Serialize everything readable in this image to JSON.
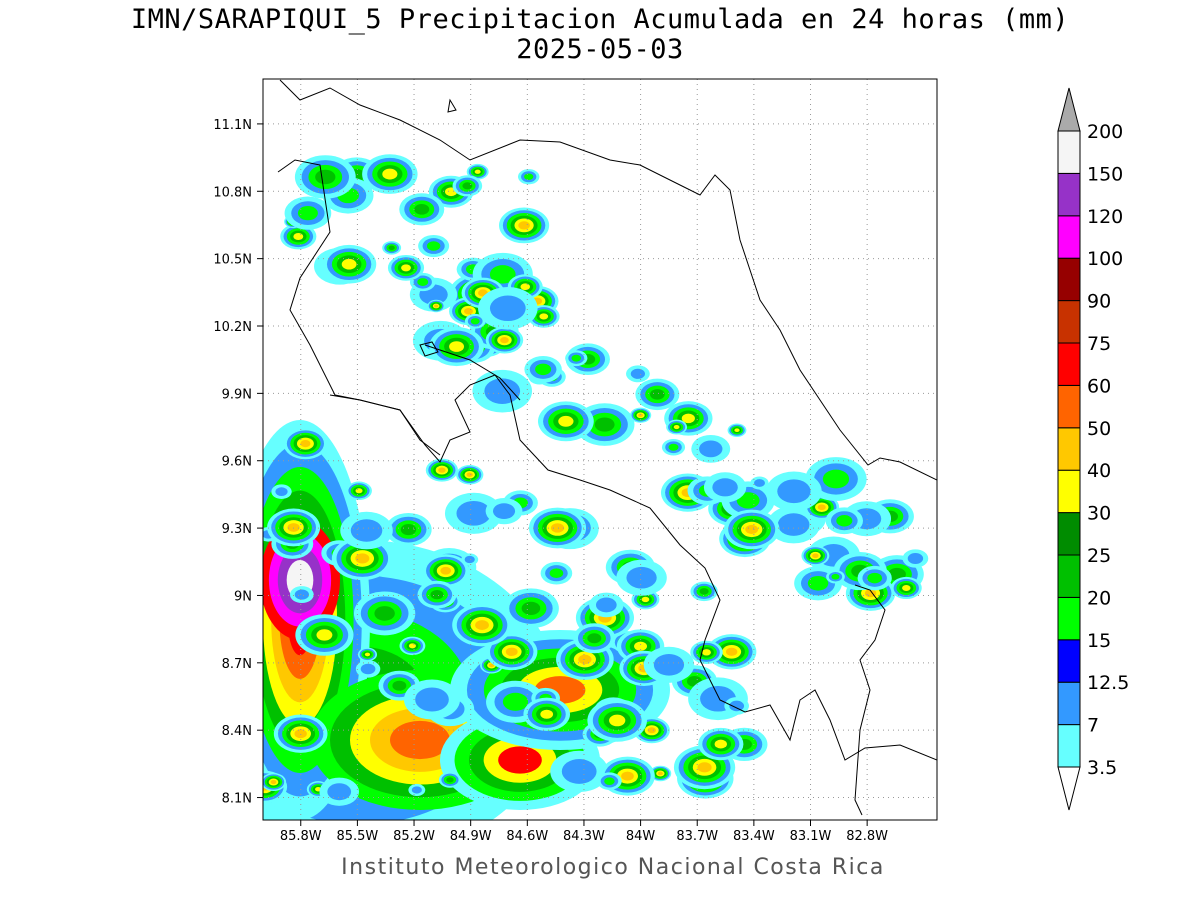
{
  "title": "IMN/SARAPIQUI_5 Precipitacion Acumulada en 24 horas (mm)",
  "date": "2025-05-03",
  "credit": "Instituto Meteorologico Nacional Costa Rica",
  "map": {
    "lon_range": [
      -86.0,
      -82.43
    ],
    "lat_range": [
      8.0,
      11.3
    ],
    "lon_ticks": [
      "85.8W",
      "85.5W",
      "85.2W",
      "84.9W",
      "84.6W",
      "84.3W",
      "84W",
      "83.7W",
      "83.4W",
      "83.1W",
      "82.8W"
    ],
    "lat_ticks": [
      "11.1N",
      "10.8N",
      "10.5N",
      "10.2N",
      "9.9N",
      "9.6N",
      "9.3N",
      "9N",
      "8.7N",
      "8.4N",
      "8.1N"
    ],
    "grid": "dotted"
  },
  "colorbar": {
    "labels": [
      "3.5",
      "7",
      "12.5",
      "15",
      "20",
      "25",
      "30",
      "40",
      "50",
      "60",
      "75",
      "90",
      "100",
      "120",
      "150",
      "200"
    ],
    "colors": [
      "#66ffff",
      "#3399ff",
      "#0000ff",
      "#00ff00",
      "#00c000",
      "#008c00",
      "#ffff00",
      "#ffc800",
      "#ff6400",
      "#ff0000",
      "#c83200",
      "#960000",
      "#ff00ff",
      "#9632c8",
      "#f5f5f5"
    ],
    "below_color": "#ffffff",
    "above_color": "#aaaaaa"
  }
}
